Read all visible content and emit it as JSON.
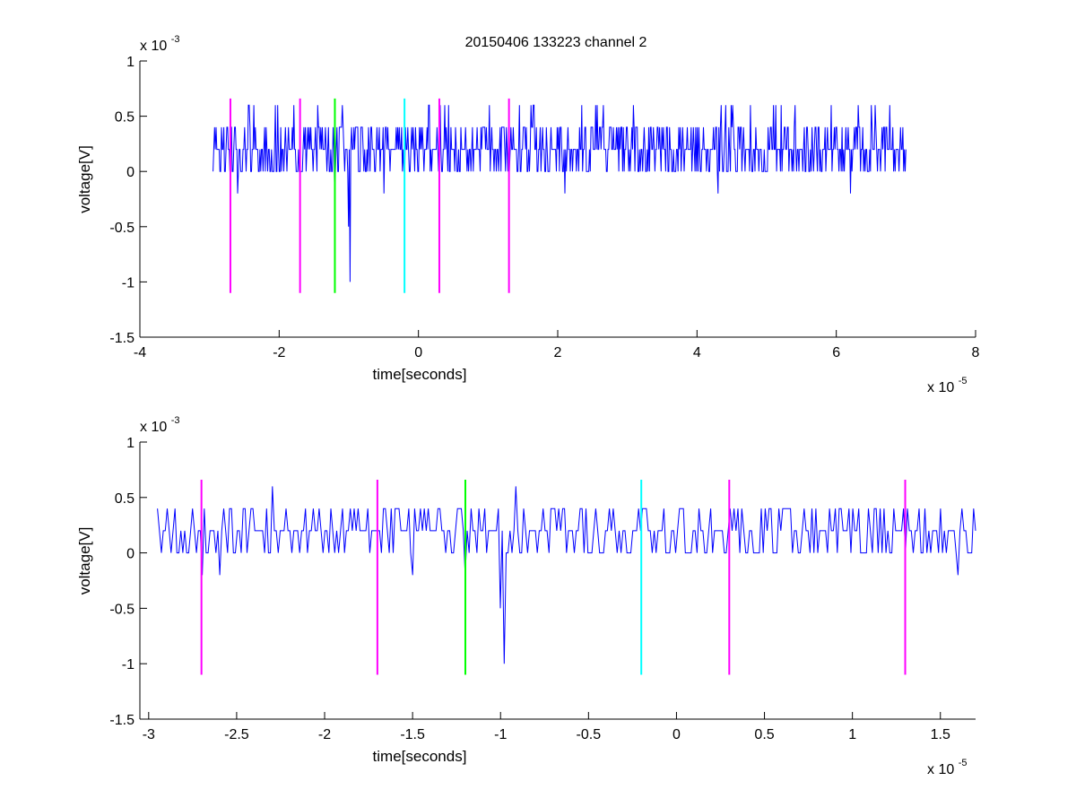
{
  "figure": {
    "title": "20150406 133223 channel 2"
  },
  "chart_data": [
    {
      "type": "line",
      "xlabel": "time[seconds]",
      "ylabel": "voltage[V]",
      "x_exponent_label": "x 10",
      "x_exponent": "-5",
      "y_exponent_label": "x 10",
      "y_exponent": "-3",
      "xlim": [
        -4e-05,
        8e-05
      ],
      "ylim": [
        -0.0015,
        0.001
      ],
      "xticks": [
        -4e-05,
        -2e-05,
        0,
        2e-05,
        4e-05,
        6e-05,
        8e-05
      ],
      "xtick_labels": [
        "-4",
        "-2",
        "0",
        "2",
        "4",
        "6",
        "8"
      ],
      "yticks": [
        -0.0015,
        -0.001,
        -0.0005,
        0,
        0.0005,
        0.001
      ],
      "ytick_labels": [
        "-1.5",
        "-1",
        "-0.5",
        "0",
        "0.5",
        "1"
      ],
      "grid": false,
      "series": [
        {
          "color": "#0000ff",
          "style": "step noise signal quantized at 0.2e-3 V, baseline ~0.2e-3 V",
          "x_range": [
            -2.95e-05,
            7e-05
          ],
          "baseline": 0.0002,
          "levels": [
            0.0,
            0.0002,
            0.0004,
            0.0006
          ],
          "dips": [
            {
              "x": -2.6e-05,
              "y": -0.0002
            },
            {
              "x": -1.2e-05,
              "y": -0.0002
            },
            {
              "x": -1e-05,
              "y": -0.0005
            },
            {
              "x": -9.8e-06,
              "y": -0.001
            },
            {
              "x": -5e-06,
              "y": -0.0002
            },
            {
              "x": 2.1e-05,
              "y": -0.0002
            },
            {
              "x": 4.3e-05,
              "y": -0.0002
            },
            {
              "x": 6.2e-05,
              "y": -0.0002
            }
          ]
        }
      ],
      "markers": [
        {
          "x": -2.7e-05,
          "color": "#ff00ff",
          "y_range": [
            -0.0011,
            0.00066
          ]
        },
        {
          "x": -1.7e-05,
          "color": "#ff00ff",
          "y_range": [
            -0.0011,
            0.00066
          ]
        },
        {
          "x": -1.2e-05,
          "color": "#00ff00",
          "y_range": [
            -0.0011,
            0.00066
          ]
        },
        {
          "x": -2e-06,
          "color": "#00ffff",
          "y_range": [
            -0.0011,
            0.00066
          ]
        },
        {
          "x": 3e-06,
          "color": "#ff00ff",
          "y_range": [
            -0.0011,
            0.00066
          ]
        },
        {
          "x": 1.3e-05,
          "color": "#ff00ff",
          "y_range": [
            -0.0011,
            0.00066
          ]
        }
      ]
    },
    {
      "type": "line",
      "xlabel": "time[seconds]",
      "ylabel": "voltage[V]",
      "x_exponent_label": "x 10",
      "x_exponent": "-5",
      "y_exponent_label": "x 10",
      "y_exponent": "-3",
      "xlim": [
        -3.05e-05,
        1.7e-05
      ],
      "ylim": [
        -0.0015,
        0.001
      ],
      "xticks": [
        -3e-05,
        -2.5e-05,
        -2e-05,
        -1.5e-05,
        -1e-05,
        -5e-06,
        0,
        5e-06,
        1e-05,
        1.5e-05
      ],
      "xtick_labels": [
        "-3",
        "-2.5",
        "-2",
        "-1.5",
        "-1",
        "-0.5",
        "0",
        "0.5",
        "1",
        "1.5"
      ],
      "yticks": [
        -0.0015,
        -0.001,
        -0.0005,
        0,
        0.0005,
        0.001
      ],
      "ytick_labels": [
        "-1.5",
        "-1",
        "-0.5",
        "0",
        "0.5",
        "1"
      ],
      "grid": false,
      "series": [
        {
          "color": "#0000ff",
          "style": "zoomed view of the same noise signal, baseline ~0.2e-3 V",
          "x_range": [
            -2.95e-05,
            1.7e-05
          ],
          "baseline": 0.0002,
          "levels": [
            0.0,
            0.0002,
            0.0004
          ],
          "dips": [
            {
              "x": -2.7e-05,
              "y": -0.0002
            },
            {
              "x": -2.6e-05,
              "y": -0.0002
            },
            {
              "x": -1.5e-05,
              "y": -0.0002
            },
            {
              "x": -1.2e-05,
              "y": -0.0002
            },
            {
              "x": -1e-05,
              "y": -0.0005
            },
            {
              "x": -9.8e-06,
              "y": -0.001
            },
            {
              "x": 1.6e-05,
              "y": -0.0002
            }
          ],
          "peaks": [
            {
              "x": -2.3e-05,
              "y": 0.0006
            },
            {
              "x": -9.1e-06,
              "y": 0.0006
            }
          ]
        }
      ],
      "markers": [
        {
          "x": -2.7e-05,
          "color": "#ff00ff",
          "y_range": [
            -0.0011,
            0.00066
          ]
        },
        {
          "x": -1.7e-05,
          "color": "#ff00ff",
          "y_range": [
            -0.0011,
            0.00066
          ]
        },
        {
          "x": -1.2e-05,
          "color": "#00ff00",
          "y_range": [
            -0.0011,
            0.00066
          ]
        },
        {
          "x": -2e-06,
          "color": "#00ffff",
          "y_range": [
            -0.0011,
            0.00066
          ]
        },
        {
          "x": 3e-06,
          "color": "#ff00ff",
          "y_range": [
            -0.0011,
            0.00066
          ]
        },
        {
          "x": 1.3e-05,
          "color": "#ff00ff",
          "y_range": [
            -0.0011,
            0.00066
          ]
        }
      ]
    }
  ]
}
